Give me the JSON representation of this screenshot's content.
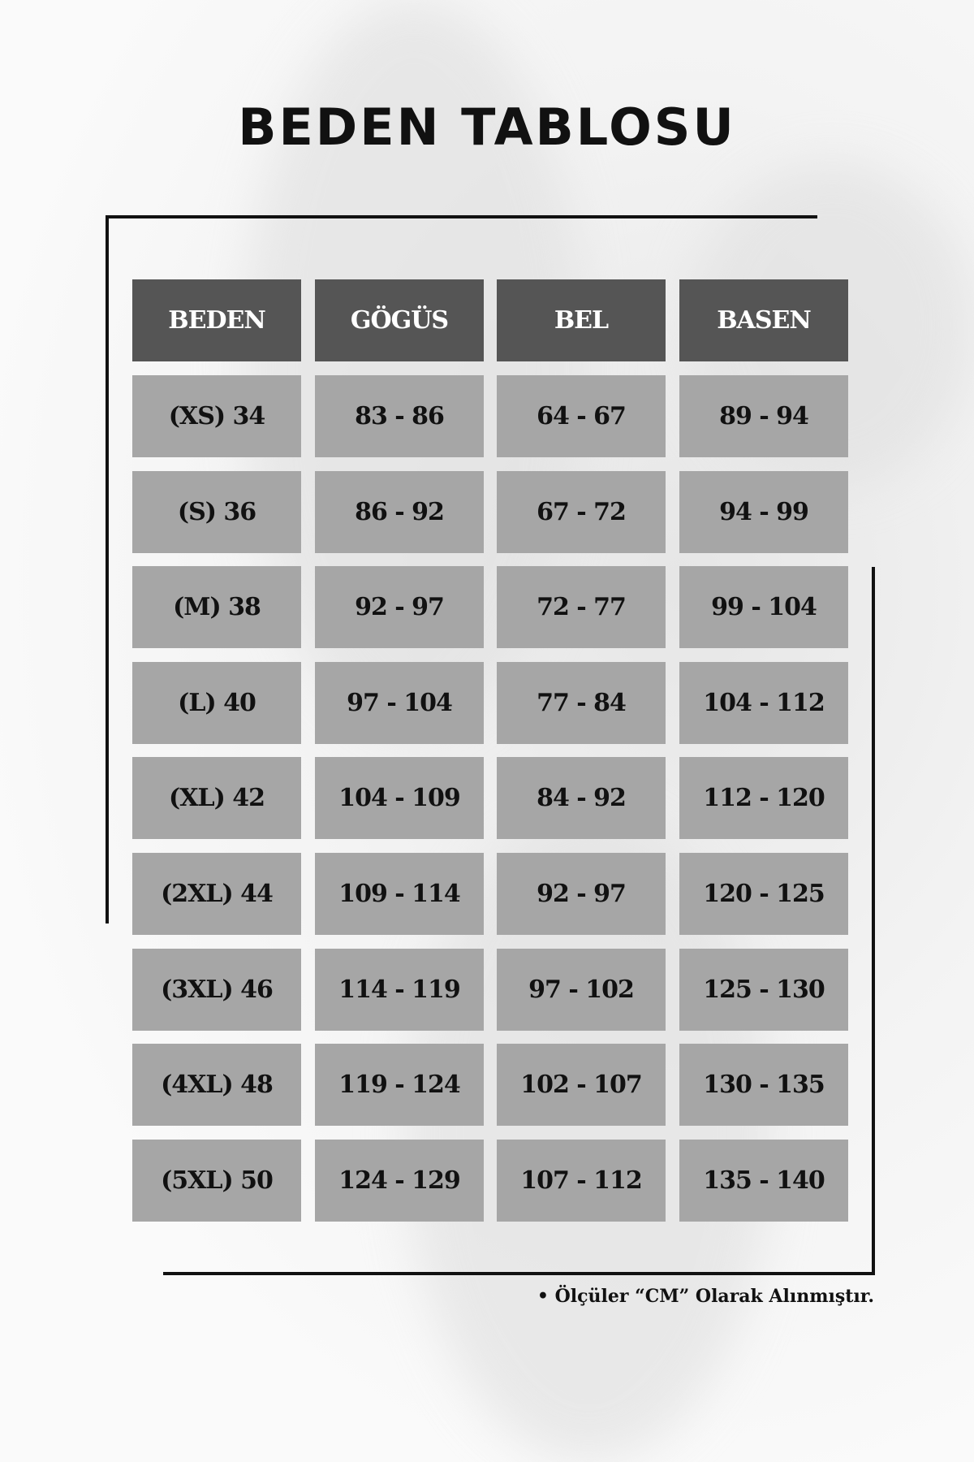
{
  "title": "BEDEN TABLOSU",
  "colors": {
    "header_bg": "#555555",
    "cell_bg": "#a6a6a6",
    "frame": "#111111"
  },
  "table": {
    "headers": [
      "BEDEN",
      "GÖGÜS",
      "BEL",
      "BASEN"
    ],
    "rows": [
      [
        "(XS) 34",
        "83 - 86",
        "64 - 67",
        "89 - 94"
      ],
      [
        "(S) 36",
        "86 - 92",
        "67 - 72",
        "94 - 99"
      ],
      [
        "(M) 38",
        "92 - 97",
        "72 - 77",
        "99 - 104"
      ],
      [
        "(L) 40",
        "97 - 104",
        "77 - 84",
        "104 - 112"
      ],
      [
        "(XL) 42",
        "104 - 109",
        "84 - 92",
        "112 - 120"
      ],
      [
        "(2XL) 44",
        "109 - 114",
        "92 - 97",
        "120 - 125"
      ],
      [
        "(3XL) 46",
        "114 - 119",
        "97 - 102",
        "125 - 130"
      ],
      [
        "(4XL) 48",
        "119 - 124",
        "102 - 107",
        "130 - 135"
      ],
      [
        "(5XL) 50",
        "124 - 129",
        "107 - 112",
        "135 - 140"
      ]
    ]
  },
  "footnote": "• Ölçüler “CM” Olarak Alınmıştır."
}
